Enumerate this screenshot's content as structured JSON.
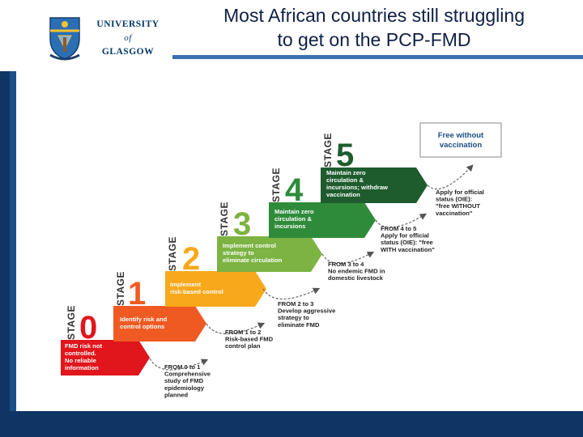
{
  "header": {
    "logo": {
      "line1": "UNIVERSITY",
      "line2": "of",
      "line3": "GLASGOW"
    },
    "title_line1": "Most African countries still struggling",
    "title_line2": "to get on the PCP-FMD"
  },
  "diagram": {
    "stage_word": "STAGE",
    "stages": [
      {
        "number": "0",
        "color": "#e0161c",
        "lines": [
          "FMD risk not",
          "controlled.",
          "No reliable",
          "information"
        ]
      },
      {
        "number": "1",
        "color": "#ef5a22",
        "lines": [
          "Identify risk and",
          "control options"
        ]
      },
      {
        "number": "2",
        "color": "#f7a81b",
        "lines": [
          "Implement",
          "risk-based control"
        ]
      },
      {
        "number": "3",
        "color": "#7cb342",
        "lines": [
          "Implement control",
          "strategy to",
          "eliminate circulation"
        ]
      },
      {
        "number": "4",
        "color": "#2e8b3a",
        "lines": [
          "Maintain zero",
          "circulation &",
          "incursions"
        ]
      },
      {
        "number": "5",
        "color": "#1e5c2e",
        "lines": [
          "Maintain zero",
          "circulation &",
          "incursions; withdraw",
          "vaccination"
        ]
      }
    ],
    "transitions": [
      {
        "lines": [
          "FROM 0 to 1",
          "Comprehensive",
          "study of FMD",
          "epidemiology",
          "planned"
        ]
      },
      {
        "lines": [
          "FROM 1 to 2",
          "Risk-based FMD",
          "control plan"
        ]
      },
      {
        "lines": [
          "FROM 2 to 3",
          "Develop aggressive",
          "strategy to",
          "eliminate FMD"
        ]
      },
      {
        "lines": [
          "FROM 3 to 4",
          "No endemic FMD in",
          "domestic livestock"
        ]
      },
      {
        "lines": [
          "FROM 4 to 5",
          "Apply for official",
          "status (OIE): \"free",
          "WITH vaccination\""
        ]
      },
      {
        "lines": [
          "Apply for official",
          "status (OIE):",
          "\"free WITHOUT",
          "vaccination\""
        ]
      }
    ],
    "final_box": {
      "line1": "Free without",
      "line2": "vaccination"
    }
  }
}
